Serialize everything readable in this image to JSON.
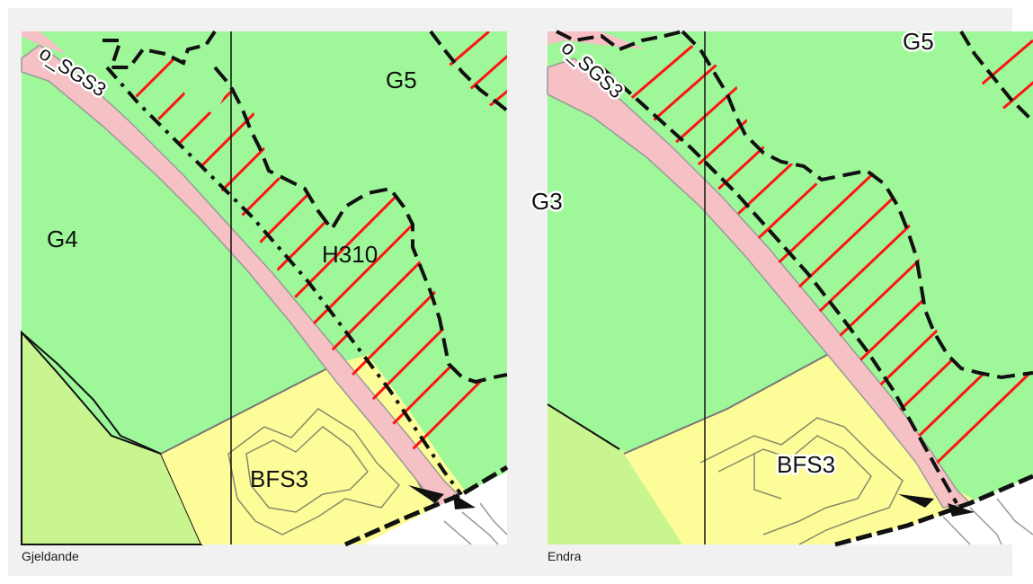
{
  "panels": [
    {
      "caption": "Gjeldande",
      "labels": {
        "road": "o_SGS3",
        "zone_g5": "G5",
        "zone_g4": "G4",
        "hatch_zone": "H310",
        "building_zone": "BFS3"
      }
    },
    {
      "caption": "Endra",
      "labels": {
        "road": "o_SGS3",
        "zone_g5": "G5",
        "zone_g3": "G3",
        "building_zone": "BFS3"
      }
    }
  ],
  "colors": {
    "green_zone": "#9ef799",
    "light_green_zone": "#c9f590",
    "road_pink": "#f6c1c4",
    "building_yellow": "#fcfc99",
    "hatch_red": "#ff1414",
    "boundary": "#111111"
  }
}
